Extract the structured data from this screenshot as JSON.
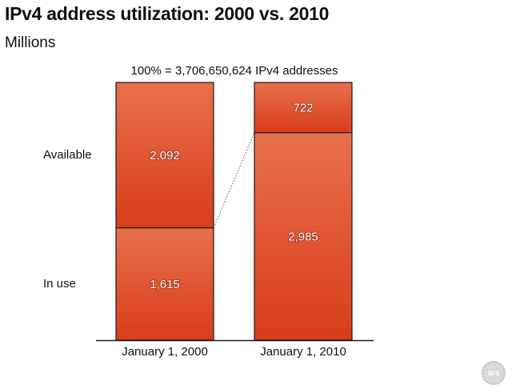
{
  "chart_data": {
    "type": "bar",
    "stacked": true,
    "title": "IPv4 address utilization: 2000 vs. 2010",
    "subtitle": "Millions",
    "total_note": "100% = 3,706,650,624 IPv4 addresses",
    "categories": [
      "January 1, 2000",
      "January 1, 2010"
    ],
    "series": [
      {
        "name": "In use",
        "values": [
          1615,
          2985
        ],
        "labels": [
          "1,615",
          "2,985"
        ]
      },
      {
        "name": "Available",
        "values": [
          2092,
          722
        ],
        "labels": [
          "2,092",
          "722"
        ]
      }
    ],
    "ylim": [
      0,
      3707
    ],
    "colors": {
      "bar_top": "#e8704c",
      "bar_bottom": "#d93d1a",
      "border": "#1a1a1a",
      "connector": "#555555"
    }
  },
  "logo": {
    "text": "ars"
  }
}
